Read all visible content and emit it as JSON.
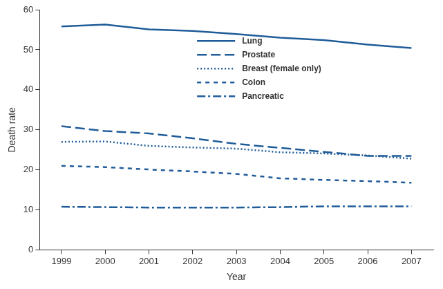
{
  "chart_data": {
    "type": "line",
    "x_label": "Year",
    "y_label": "Death rate",
    "categories": [
      "1999",
      "2000",
      "2001",
      "2002",
      "2003",
      "2004",
      "2005",
      "2006",
      "2007"
    ],
    "series": [
      {
        "name": "Lung",
        "color": "#1f5c99",
        "line_style": "solid",
        "values": [
          55.8,
          56.3,
          55.1,
          54.7,
          53.9,
          53.0,
          52.4,
          51.3,
          50.4
        ]
      },
      {
        "name": "Prostate",
        "color": "#1f5c99",
        "line_style": "long_dash",
        "values": [
          30.9,
          29.7,
          29.1,
          27.9,
          26.5,
          25.5,
          24.5,
          23.5,
          23.5
        ]
      },
      {
        "name": "Breast (female only)",
        "color": "#1f5c99",
        "line_style": "dotted",
        "values": [
          27.0,
          27.1,
          26.0,
          25.6,
          25.3,
          24.4,
          24.1,
          23.6,
          22.8
        ]
      },
      {
        "name": "Colon",
        "color": "#1f5c99",
        "line_style": "dash",
        "values": [
          21.0,
          20.7,
          20.1,
          19.6,
          19.0,
          17.9,
          17.5,
          17.2,
          16.8
        ]
      },
      {
        "name": "Pancreatic",
        "color": "#1f5c99",
        "line_style": "dash_dot",
        "values": [
          10.8,
          10.7,
          10.6,
          10.6,
          10.6,
          10.7,
          10.9,
          10.9,
          10.9
        ]
      }
    ],
    "ylim": [
      0,
      60
    ],
    "yticks": [
      0,
      10,
      20,
      30,
      40,
      50,
      60
    ],
    "grid": false,
    "legend": "top"
  }
}
